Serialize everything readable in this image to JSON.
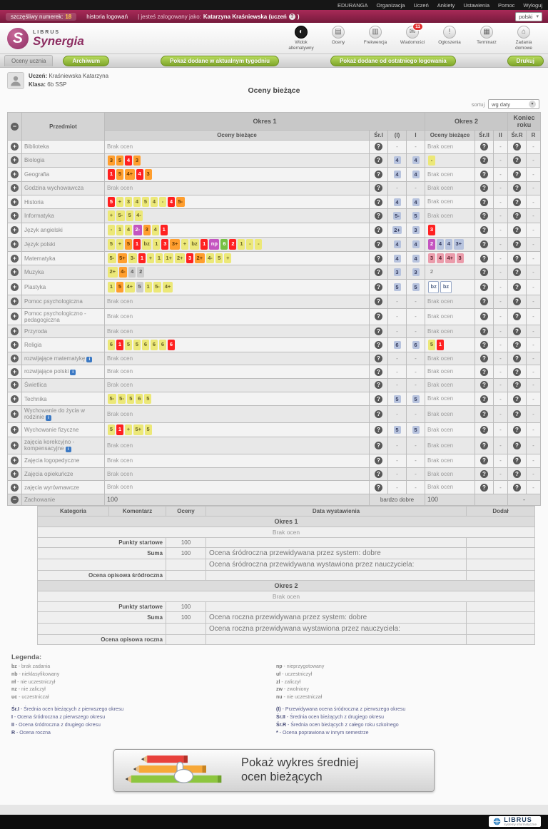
{
  "topbar": {
    "items": [
      "EDURANGA",
      "Organizacja",
      "Uczeń",
      "Ankiety",
      "Ustawienia",
      "Pomoc",
      "Wyloguj"
    ]
  },
  "userbar": {
    "lucky_label": "szczęśliwy numerek:",
    "lucky_number": "18",
    "login_history": "historia logowań",
    "logged_prefix": "| jesteś zalogowany jako:",
    "logged_name": "Katarzyna Kraśniewska (uczeń",
    "logged_suffix": ")",
    "lang": "polski"
  },
  "header": {
    "brand_small": "LIBRUS",
    "brand": "Synergia",
    "icons": [
      {
        "name": "alt-view",
        "label": "Widok alternatywny",
        "glyph": "◐",
        "dark": true
      },
      {
        "name": "grades",
        "label": "Oceny",
        "glyph": "▤"
      },
      {
        "name": "attendance",
        "label": "Frekwencja",
        "glyph": "▥"
      },
      {
        "name": "messages",
        "label": "Wiadomości",
        "glyph": "✉",
        "badge": "11"
      },
      {
        "name": "announcements",
        "label": "Ogłoszenia",
        "glyph": "!"
      },
      {
        "name": "calendar",
        "label": "Terminarz",
        "glyph": "▦"
      },
      {
        "name": "homework",
        "label": "Zadania domowe",
        "glyph": "⌂"
      }
    ]
  },
  "nav": {
    "section": "Oceny ucznia",
    "buttons": [
      "Archiwum",
      "Pokaż dodane w aktualnym tygodniu",
      "Pokaż dodane od ostatniego logowania",
      "Drukuj"
    ]
  },
  "student": {
    "student_label": "Uczeń:",
    "student_name": "Kraśniewska Katarzyna",
    "class_label": "Klasa:",
    "class_name": "6b SSP"
  },
  "page_title": "Oceny bieżące",
  "sort": {
    "label": "sortuj",
    "value": "wg daty"
  },
  "grade_colors": {
    "r": "#ff2121",
    "o": "#ff9e2e",
    "y": "#ece878",
    "g": "#76c043",
    "p": "#c455c0",
    "b": "#b7c3de",
    "k": "#eb9cab",
    "gr": "#cdcdcd",
    "w": "#ffffff"
  },
  "grades_table": {
    "col_subject": "Przedmiot",
    "band1": "Okres 1",
    "band2": "Okres 2",
    "band3": "Koniec roku",
    "subcols": [
      "Oceny bieżące",
      "Śr.I",
      "(I)",
      "I",
      "Oceny bieżące",
      "Śr.II",
      "II",
      "Śr.R",
      "R"
    ],
    "empty_text": "Brak ocen",
    "rows": [
      {
        "subject": "Biblioteka",
        "g1": [],
        "p1": "-",
        "f1": "-",
        "g2": [],
        "f2": "-",
        "fr": "-"
      },
      {
        "subject": "Biologia",
        "g1": [
          [
            "3",
            "o"
          ],
          [
            "5",
            "o"
          ],
          [
            "4",
            "r"
          ],
          [
            "3",
            "o"
          ]
        ],
        "p1": "4",
        "f1": "4",
        "g2": [
          [
            "-",
            "y"
          ]
        ],
        "f2": "-",
        "fr": "-"
      },
      {
        "subject": "Geografia",
        "g1": [
          [
            "1",
            "r"
          ],
          [
            "5",
            "o"
          ],
          [
            "4+",
            "o"
          ],
          [
            "4",
            "r"
          ],
          [
            "3",
            "o"
          ]
        ],
        "p1": "4",
        "f1": "4",
        "g2": [],
        "f2": "-",
        "fr": "-"
      },
      {
        "subject": "Godzina wychowawcza",
        "g1": [],
        "p1": "-",
        "f1": "-",
        "g2": [],
        "f2": "-",
        "fr": "-"
      },
      {
        "subject": "Historia",
        "g1": [
          [
            "5",
            "r"
          ],
          [
            "+",
            "y"
          ],
          [
            "3",
            "y"
          ],
          [
            "4",
            "y"
          ],
          [
            "5",
            "y"
          ],
          [
            "4",
            "y"
          ],
          [
            "-",
            "y"
          ],
          [
            "4",
            "r"
          ],
          [
            "5-",
            "o"
          ]
        ],
        "p1": "4",
        "f1": "4",
        "g2": [],
        "f2": "-",
        "fr": "-"
      },
      {
        "subject": "Informatyka",
        "g1": [
          [
            "+",
            "y"
          ],
          [
            "5-",
            "y"
          ],
          [
            "5",
            "y"
          ],
          [
            "4-",
            "y"
          ]
        ],
        "p1": "5-",
        "f1": "5",
        "g2": [],
        "f2": "-",
        "fr": "-"
      },
      {
        "subject": "Język angielski",
        "g1": [
          [
            "-",
            "y"
          ],
          [
            "1",
            "y"
          ],
          [
            "4",
            "y"
          ],
          [
            "2-",
            "p"
          ],
          [
            "3",
            "o"
          ],
          [
            "4",
            "y"
          ],
          [
            "1",
            "r"
          ]
        ],
        "p1": "2+",
        "f1": "3",
        "g2": [
          [
            "3",
            "r"
          ]
        ],
        "f2": "-",
        "fr": "-"
      },
      {
        "subject": "Język polski",
        "g1": [
          [
            "5",
            "y"
          ],
          [
            "+",
            "y"
          ],
          [
            "5",
            "o"
          ],
          [
            "1",
            "r"
          ],
          [
            "bz",
            "y"
          ],
          [
            "1",
            "y"
          ],
          [
            "3",
            "r"
          ],
          [
            "3+",
            "o"
          ],
          [
            "+",
            "y"
          ],
          [
            "bz",
            "y"
          ],
          [
            "1",
            "r"
          ],
          [
            "np",
            "p"
          ],
          [
            "6",
            "g"
          ],
          [
            "2",
            "r"
          ],
          [
            "1",
            "y"
          ],
          [
            "-",
            "y"
          ],
          [
            "-",
            "y"
          ]
        ],
        "p1": "4",
        "f1": "4",
        "g2": [
          [
            "2",
            "p"
          ],
          [
            "4",
            "b"
          ],
          [
            "4",
            "b"
          ],
          [
            "3+",
            "b"
          ]
        ],
        "f2": "-",
        "fr": "-"
      },
      {
        "subject": "Matematyka",
        "g1": [
          [
            "5-",
            "y"
          ],
          [
            "5+",
            "o"
          ],
          [
            "3-",
            "y"
          ],
          [
            "1",
            "r"
          ],
          [
            "+",
            "y"
          ],
          [
            "1",
            "y"
          ],
          [
            "1+",
            "y"
          ],
          [
            "2+",
            "y"
          ],
          [
            "3",
            "r"
          ],
          [
            "2+",
            "o"
          ],
          [
            "4-",
            "y"
          ],
          [
            "5",
            "y"
          ],
          [
            "+",
            "y"
          ]
        ],
        "p1": "4",
        "f1": "4",
        "g2": [
          [
            "3",
            "k"
          ],
          [
            "4",
            "k"
          ],
          [
            "4+",
            "k"
          ],
          [
            "3",
            "k"
          ]
        ],
        "f2": "-",
        "fr": "-"
      },
      {
        "subject": "Muzyka",
        "g1": [
          [
            "2+",
            "y"
          ],
          [
            "4-",
            "o"
          ],
          [
            "4",
            "gr"
          ],
          [
            "2",
            "gr"
          ]
        ],
        "p1": "3",
        "f1": "3",
        "g2": [
          [
            "2",
            "n"
          ]
        ],
        "f2": "-",
        "fr": "-"
      },
      {
        "subject": "Plastyka",
        "g1": [
          [
            "1",
            "y"
          ],
          [
            "5",
            "o"
          ],
          [
            "4+",
            "y"
          ],
          [
            "5",
            "gr"
          ],
          [
            "1",
            "y"
          ],
          [
            "5-",
            "y"
          ],
          [
            "4+",
            "y"
          ]
        ],
        "p1": "5",
        "f1": "5",
        "g2": [
          [
            "bz",
            "w"
          ],
          [
            "bz",
            "w"
          ]
        ],
        "f2": "-",
        "fr": "-"
      },
      {
        "subject": "Pomoc psychologiczna",
        "g1": [],
        "p1": "-",
        "f1": "-",
        "g2": [],
        "f2": "-",
        "fr": "-"
      },
      {
        "subject": "Pomoc psychologiczno - pedagogiczna",
        "g1": [],
        "p1": "-",
        "f1": "-",
        "g2": [],
        "f2": "-",
        "fr": "-"
      },
      {
        "subject": "Przyroda",
        "g1": [],
        "p1": "-",
        "f1": "-",
        "g2": [],
        "f2": "-",
        "fr": "-"
      },
      {
        "subject": "Religia",
        "g1": [
          [
            "6",
            "y"
          ],
          [
            "1",
            "r"
          ],
          [
            "5",
            "y"
          ],
          [
            "5",
            "y"
          ],
          [
            "6",
            "y"
          ],
          [
            "6",
            "y"
          ],
          [
            "6",
            "y"
          ],
          [
            "6",
            "r"
          ]
        ],
        "p1": "6",
        "f1": "6",
        "g2": [
          [
            "5",
            "y"
          ],
          [
            "1",
            "r"
          ]
        ],
        "f2": "-",
        "fr": "-"
      },
      {
        "subject": "rozwijające matematykę",
        "info": true,
        "g1": [],
        "p1": "-",
        "f1": "-",
        "g2": [],
        "f2": "-",
        "fr": "-"
      },
      {
        "subject": "rozwijające polski",
        "info": true,
        "g1": [],
        "p1": "-",
        "f1": "-",
        "g2": [],
        "f2": "-",
        "fr": "-"
      },
      {
        "subject": "Świetlica",
        "g1": [],
        "p1": "-",
        "f1": "-",
        "g2": [],
        "f2": "-",
        "fr": "-"
      },
      {
        "subject": "Technika",
        "g1": [
          [
            "5-",
            "y"
          ],
          [
            "5-",
            "y"
          ],
          [
            "5",
            "y"
          ],
          [
            "6",
            "y"
          ],
          [
            "5",
            "y"
          ]
        ],
        "p1": "5",
        "f1": "5",
        "g2": [],
        "f2": "-",
        "fr": "-"
      },
      {
        "subject": "Wychowanie do życia w rodzinie",
        "info": true,
        "g1": [],
        "p1": "-",
        "f1": "-",
        "g2": [],
        "f2": "-",
        "fr": "-"
      },
      {
        "subject": "Wychowanie fizyczne",
        "g1": [
          [
            "5",
            "y"
          ],
          [
            "1",
            "r"
          ],
          [
            "+",
            "y"
          ],
          [
            "5+",
            "y"
          ],
          [
            "5",
            "y"
          ]
        ],
        "p1": "5",
        "f1": "5",
        "g2": [],
        "f2": "-",
        "fr": "-"
      },
      {
        "subject": "zajęcia korekcyjno - kompensacyjne",
        "info": true,
        "g1": [],
        "p1": "-",
        "f1": "-",
        "g2": [],
        "f2": "-",
        "fr": "-"
      },
      {
        "subject": "Zajęcia logopedyczne",
        "g1": [],
        "p1": "-",
        "f1": "-",
        "g2": [],
        "f2": "-",
        "fr": "-"
      },
      {
        "subject": "Zajęcia opiekuńcze",
        "g1": [],
        "p1": "-",
        "f1": "-",
        "g2": [],
        "f2": "-",
        "fr": "-"
      },
      {
        "subject": "zajęcia wyrównawcze",
        "g1": [],
        "p1": "-",
        "f1": "-",
        "g2": [],
        "f2": "-",
        "fr": "-"
      }
    ],
    "behavior": {
      "subject": "Zachowanie",
      "points1": "100",
      "grade1": "bardzo dobre",
      "points2": "100",
      "final": "-"
    }
  },
  "behavior_detail": {
    "headers": [
      "Kategoria",
      "Komentarz",
      "Oceny",
      "Data wystawienia",
      "Dodał"
    ],
    "sections": [
      {
        "title": "Okres 1",
        "empty": "Brak ocen",
        "rows": [
          {
            "label": "Punkty startowe",
            "value": "100",
            "note": ""
          },
          {
            "label": "Suma",
            "value": "100",
            "note": "Ocena śródroczna przewidywana przez system: dobre"
          },
          {
            "label": "",
            "value": "",
            "note": "Ocena śródroczna przewidywana wystawiona przez nauczyciela:"
          },
          {
            "label": "Ocena opisowa śródroczna",
            "value": "",
            "note": ""
          }
        ]
      },
      {
        "title": "Okres 2",
        "empty": "Brak ocen",
        "rows": [
          {
            "label": "Punkty startowe",
            "value": "100",
            "note": ""
          },
          {
            "label": "Suma",
            "value": "100",
            "note": "Ocena roczna przewidywana przez system: dobre"
          },
          {
            "label": "",
            "value": "",
            "note": "Ocena roczna przewidywana wystawiona przez nauczyciela:"
          },
          {
            "label": "Ocena opisowa roczna",
            "value": "",
            "note": ""
          }
        ]
      }
    ]
  },
  "legend": {
    "title": "Legenda:",
    "abbr_left": [
      {
        "k": "bz",
        "t": "brak zadania"
      },
      {
        "k": "nb",
        "t": "nieklasyfikowany"
      },
      {
        "k": "nł",
        "t": "nie uczestniczył"
      },
      {
        "k": "nz",
        "t": "nie zaliczył"
      },
      {
        "k": "uc",
        "t": "uczestniczał"
      }
    ],
    "abbr_right": [
      {
        "k": "np",
        "t": "nieprzygotowany"
      },
      {
        "k": "uł",
        "t": "uczestniczył"
      },
      {
        "k": "zl",
        "t": "zaliczył"
      },
      {
        "k": "zw",
        "t": "zwolniony"
      },
      {
        "k": "nu",
        "t": "nie uczestniczał"
      }
    ],
    "calc_left": [
      {
        "k": "Śr.I",
        "t": "Średnia ocen bieżących z pierwszego okresu"
      },
      {
        "k": "I",
        "t": "Ocena śródroczna z pierwszego okresu"
      },
      {
        "k": "II",
        "t": "Ocena śródroczna z drugiego okresu"
      },
      {
        "k": "R",
        "t": "Ocena roczna"
      }
    ],
    "calc_right": [
      {
        "k": "(I)",
        "t": "Przewidywana ocena śródroczna z pierwszego okresu"
      },
      {
        "k": "Śr.II",
        "t": "Średnia ocen bieżących z drugiego okresu"
      },
      {
        "k": "Śr.R",
        "t": "Średnia ocen bieżących z całego roku szkolnego"
      },
      {
        "k": "*",
        "t": "Ocena poprawiona w innym semestrze"
      }
    ]
  },
  "banner": {
    "line1": "Pokaż wykres średniej",
    "line2": "ocen bieżących"
  },
  "footer": {
    "brand": "LIBRUS",
    "tagline": "systemy informatyczne"
  }
}
